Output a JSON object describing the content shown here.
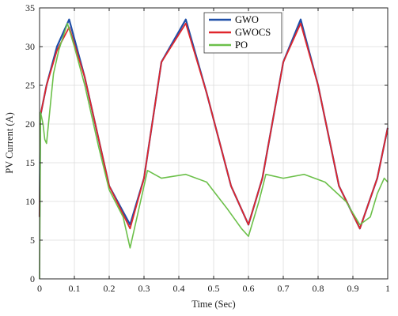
{
  "chart_data": {
    "type": "line",
    "title": "",
    "xlabel": "Time (Sec)",
    "ylabel": "PV Current (A)",
    "xlim": [
      0,
      1
    ],
    "ylim": [
      0,
      35
    ],
    "x_ticks": [
      "0",
      "0.1",
      "0.2",
      "0.3",
      "0.4",
      "0.5",
      "0.6",
      "0.7",
      "0.8",
      "0.9",
      "1"
    ],
    "y_ticks": [
      "0",
      "5",
      "10",
      "15",
      "20",
      "25",
      "30",
      "35"
    ],
    "grid": true,
    "legend_position": "top-right",
    "series": [
      {
        "name": "GWO",
        "color": "#1f4fa8",
        "x": [
          0,
          0.002,
          0.02,
          0.05,
          0.085,
          0.13,
          0.2,
          0.26,
          0.3,
          0.35,
          0.42,
          0.48,
          0.55,
          0.6,
          0.64,
          0.7,
          0.75,
          0.8,
          0.86,
          0.92,
          0.97,
          1.0
        ],
        "y": [
          8,
          21,
          25,
          30,
          33.5,
          26,
          12,
          7,
          13,
          28,
          33.5,
          24,
          12,
          7,
          13,
          28,
          33.5,
          25,
          12,
          6.5,
          13,
          19.5
        ]
      },
      {
        "name": "GWOCS",
        "color": "#e0262c",
        "x": [
          0,
          0.002,
          0.02,
          0.05,
          0.085,
          0.13,
          0.2,
          0.26,
          0.3,
          0.35,
          0.42,
          0.48,
          0.55,
          0.6,
          0.64,
          0.7,
          0.75,
          0.8,
          0.86,
          0.92,
          0.97,
          1.0
        ],
        "y": [
          8,
          21,
          25,
          29.5,
          32.5,
          26,
          12,
          6.5,
          13,
          28,
          33,
          24,
          12,
          7,
          13,
          28,
          33,
          25,
          12,
          6.5,
          13,
          19.5
        ]
      },
      {
        "name": "PO",
        "color": "#6cc04a",
        "x": [
          0,
          0.003,
          0.01,
          0.015,
          0.02,
          0.04,
          0.055,
          0.08,
          0.1,
          0.13,
          0.17,
          0.2,
          0.24,
          0.26,
          0.29,
          0.31,
          0.35,
          0.42,
          0.48,
          0.54,
          0.58,
          0.6,
          0.63,
          0.65,
          0.7,
          0.76,
          0.82,
          0.88,
          0.92,
          0.95,
          0.97,
          0.99,
          1.0
        ],
        "y": [
          0,
          21.5,
          20,
          18,
          17.5,
          26.5,
          29.5,
          33,
          30,
          25,
          17,
          11.5,
          8,
          4,
          10,
          14,
          13,
          13.5,
          12.5,
          9,
          6.5,
          5.5,
          10,
          13.5,
          13,
          13.5,
          12.5,
          10,
          7,
          8,
          11,
          13,
          12.5
        ]
      }
    ]
  }
}
